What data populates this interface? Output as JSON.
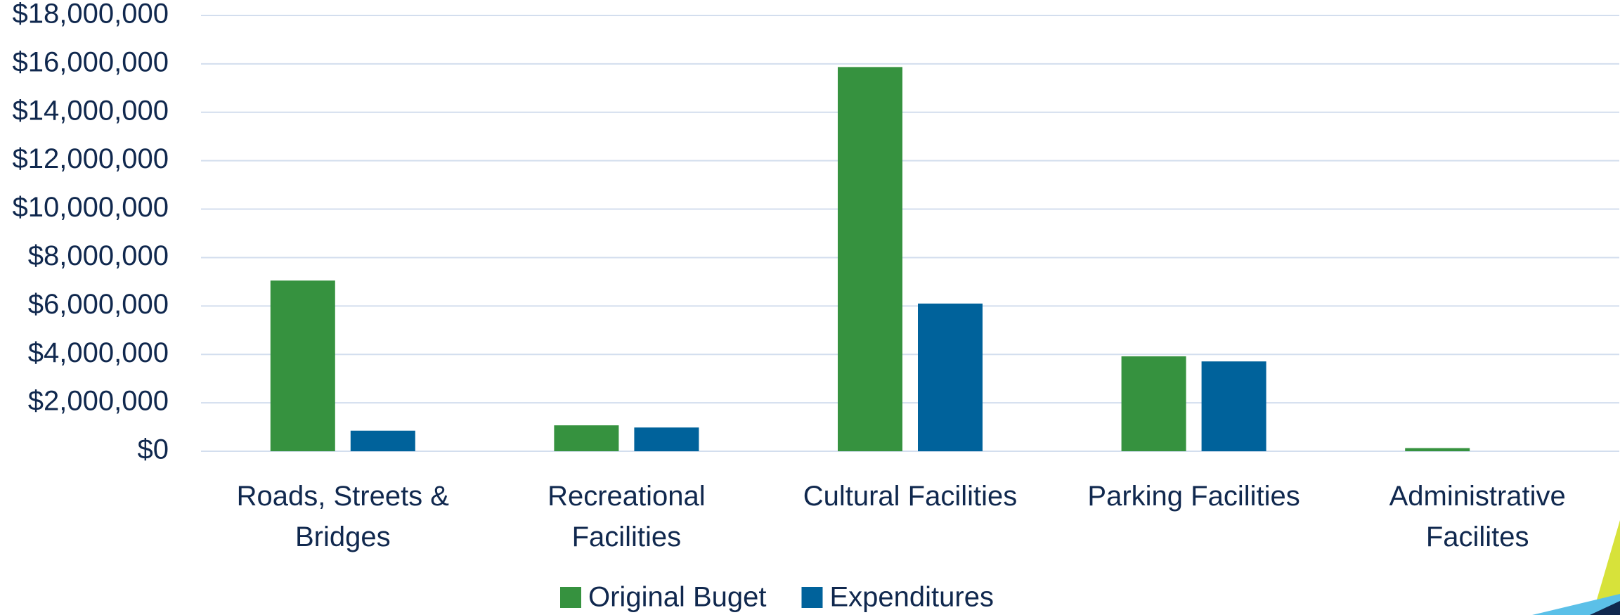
{
  "chart_data": {
    "type": "bar",
    "categories": [
      "Roads, Streets & Bridges",
      "Recreational Facilities",
      "Cultural Facilities",
      "Parking Facilities",
      "Administrative Facilites"
    ],
    "series": [
      {
        "name": "Original Buget",
        "color": "#36923f",
        "values": [
          7050000,
          1070000,
          15870000,
          3920000,
          130000
        ]
      },
      {
        "name": "Expenditures",
        "color": "#00629b",
        "values": [
          850000,
          980000,
          6100000,
          3710000,
          0
        ]
      }
    ],
    "ylim": [
      0,
      18000000
    ],
    "yticks": [
      {
        "value": 0,
        "label": "$0"
      },
      {
        "value": 2000000,
        "label": "$2,000,000"
      },
      {
        "value": 4000000,
        "label": "$4,000,000"
      },
      {
        "value": 6000000,
        "label": "$6,000,000"
      },
      {
        "value": 8000000,
        "label": "$8,000,000"
      },
      {
        "value": 10000000,
        "label": "$10,000,000"
      },
      {
        "value": 12000000,
        "label": "$12,000,000"
      },
      {
        "value": 14000000,
        "label": "$14,000,000"
      },
      {
        "value": 16000000,
        "label": "$16,000,000"
      },
      {
        "value": 18000000,
        "label": "$18,000,000"
      }
    ],
    "grid": true,
    "legend": "bottom"
  }
}
